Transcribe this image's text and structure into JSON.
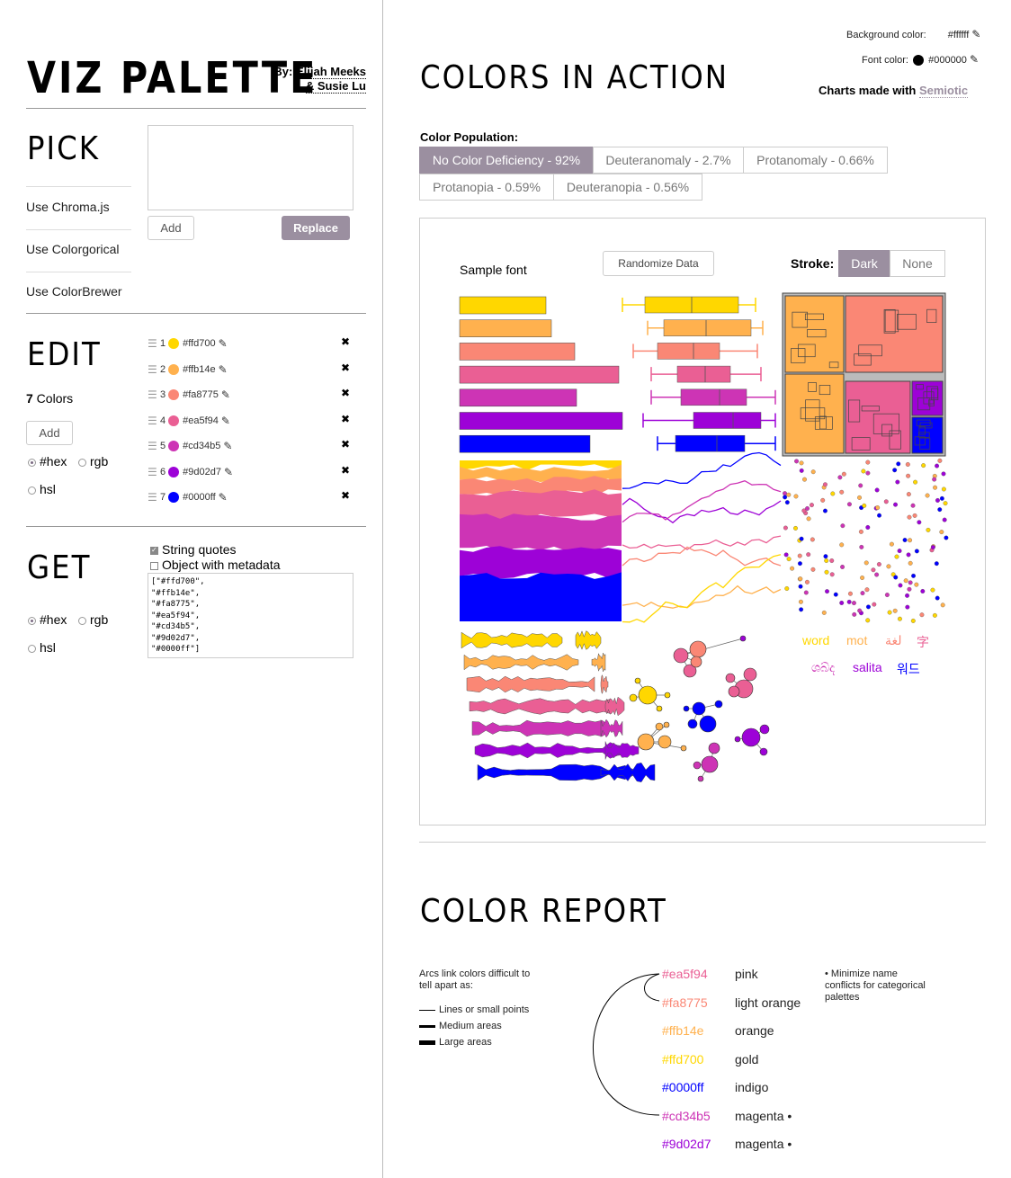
{
  "app": {
    "title": "VIZ PALETTE",
    "by_label": "By:",
    "author1": "Elijah Meeks",
    "author2": "& Susie Lu"
  },
  "pick": {
    "heading": "PICK",
    "textarea_value": "",
    "options": [
      "Use Chroma.js",
      "Use Colorgorical",
      "Use ColorBrewer"
    ],
    "add_label": "Add",
    "replace_label": "Replace"
  },
  "edit": {
    "heading": "EDIT",
    "count_num": "7",
    "count_label": " Colors",
    "add_label": "Add",
    "format_hex": "#hex",
    "format_rgb": "rgb",
    "format_hsl": "hsl",
    "colors": [
      {
        "index": "1",
        "hex": "#ffd700"
      },
      {
        "index": "2",
        "hex": "#ffb14e"
      },
      {
        "index": "3",
        "hex": "#fa8775"
      },
      {
        "index": "4",
        "hex": "#ea5f94"
      },
      {
        "index": "5",
        "hex": "#cd34b5"
      },
      {
        "index": "6",
        "hex": "#9d02d7"
      },
      {
        "index": "7",
        "hex": "#0000ff"
      }
    ]
  },
  "get": {
    "heading": "GET",
    "string_quotes": "String quotes",
    "object_meta": "Object with metadata",
    "output": "[\"#ffd700\",\n\"#ffb14e\",\n\"#fa8775\",\n\"#ea5f94\",\n\"#cd34b5\",\n\"#9d02d7\",\n\"#0000ff\"]",
    "format_hex": "#hex",
    "format_rgb": "rgb",
    "format_hsl": "hsl"
  },
  "settings": {
    "bg_label": "Background color:",
    "bg_value": "#ffffff",
    "font_label": "Font color:",
    "font_value": "#000000",
    "charts_made": "Charts made with ",
    "semiotic": "Semiotic"
  },
  "action": {
    "heading": "COLORS IN ACTION",
    "population_label": "Color Population:",
    "tabs": [
      "No Color Deficiency - 92%",
      "Deuteranomaly - 2.7%",
      "Protanomaly - 0.66%",
      "Protanopia - 0.59%",
      "Deuteranopia - 0.56%"
    ],
    "sample_font": "Sample font",
    "randomize": "Randomize Data",
    "stroke_label": "Stroke:",
    "stroke_dark": "Dark",
    "stroke_none": "None",
    "words": [
      "word",
      "mot",
      "لغة",
      "字",
      "ශබ්ද",
      "salita",
      "워드"
    ]
  },
  "report": {
    "heading": "COLOR REPORT",
    "arcs_note": "Arcs link colors difficult to tell apart as:",
    "legend": [
      "Lines or small points",
      "Medium areas",
      "Large areas"
    ],
    "rows": [
      {
        "hex": "#ea5f94",
        "name": "pink"
      },
      {
        "hex": "#fa8775",
        "name": "light orange"
      },
      {
        "hex": "#ffb14e",
        "name": "orange"
      },
      {
        "hex": "#ffd700",
        "name": "gold"
      },
      {
        "hex": "#0000ff",
        "name": "indigo"
      },
      {
        "hex": "#cd34b5",
        "name": "magenta •"
      },
      {
        "hex": "#9d02d7",
        "name": "magenta •"
      }
    ],
    "tip": "• Minimize name conflicts for categorical palettes"
  }
}
